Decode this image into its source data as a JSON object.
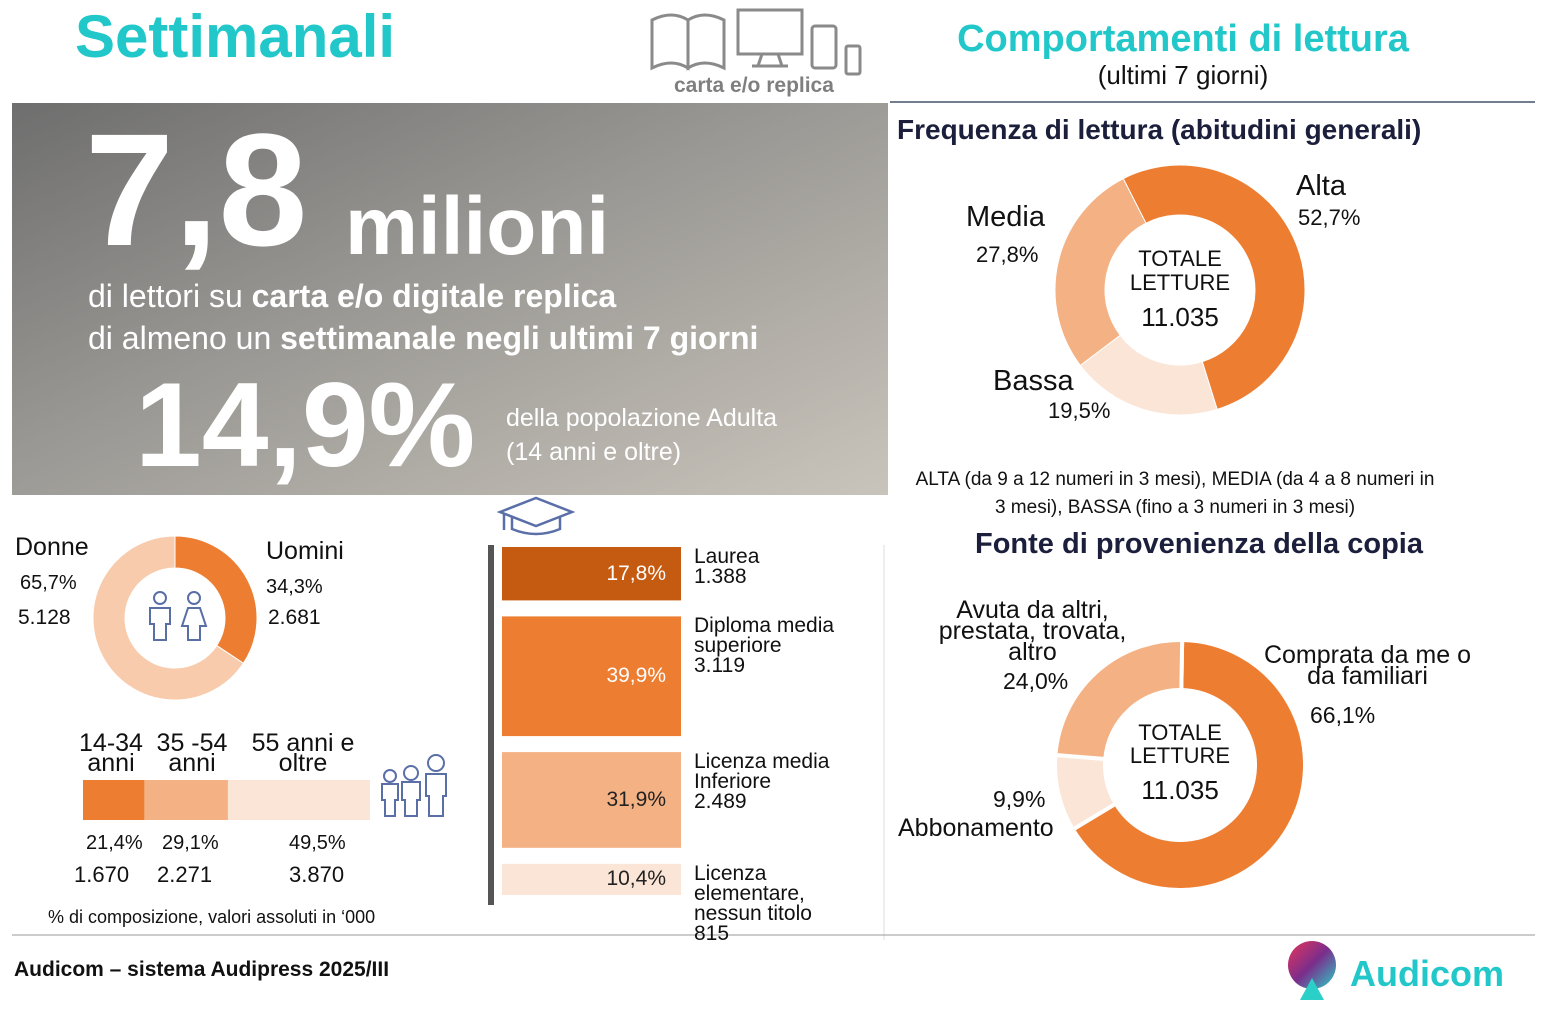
{
  "header": {
    "title": "Settimanali",
    "icon_caption": "carta e/o replica",
    "section_title": "Comportamenti di lettura",
    "section_subtitle": "(ultimi 7 giorni)"
  },
  "hero": {
    "big_number": "7,8",
    "big_unit": "milioni",
    "line1_prefix": "di lettori su",
    "line1_bold": "carta e/o digitale replica",
    "line2_prefix": "di almeno un",
    "line2_bold": "settimanale negli ultimi 7 giorni",
    "pct": "14,9%",
    "pct_desc1": "della popolazione Adulta",
    "pct_desc2": "(14 anni e oltre)"
  },
  "chart_data": [
    {
      "type": "donut",
      "title": "Frequenza di lettura  (abitudini generali)",
      "categories": [
        "Alta",
        "Bassa",
        "Media"
      ],
      "values": [
        52.7,
        19.5,
        27.8
      ],
      "value_labels": [
        "52,7%",
        "19,5%",
        "27,8%"
      ],
      "colors": [
        "#ed7d31",
        "#fbe5d6",
        "#f4b183"
      ],
      "center_text": [
        "TOTALE",
        "LETTURE"
      ],
      "total_label": "11.035",
      "note": "ALTA (da 9 a 12 numeri in 3 mesi), MEDIA (da 4 a 8 numeri in 3 mesi), BASSA (fino a 3 numeri in 3 mesi)"
    },
    {
      "type": "donut",
      "categories": [
        "Uomini",
        "Donne"
      ],
      "values": [
        34.3,
        65.7
      ],
      "value_labels": [
        "34,3%",
        "65,7%"
      ],
      "absolute": [
        "2.681",
        "5.128"
      ],
      "colors": [
        "#ed7d31",
        "#f8cbad"
      ]
    },
    {
      "type": "stacked-bar",
      "categories": [
        "14-34 anni",
        "35 -54 anni",
        "55 anni e oltre"
      ],
      "values": [
        21.4,
        29.1,
        49.5
      ],
      "value_labels": [
        "21,4%",
        "29,1%",
        "49,5%"
      ],
      "absolute": [
        "1.670",
        "2.271",
        "3.870"
      ],
      "colors": [
        "#ed7d31",
        "#f4b183",
        "#fbe5d6"
      ],
      "note": "% di composizione, valori assoluti in ‘000"
    },
    {
      "type": "bar",
      "categories": [
        "Laurea",
        "Diploma media superiore",
        "Licenza media Inferiore",
        "Licenza elementare, nessun titolo"
      ],
      "values": [
        17.8,
        39.9,
        31.9,
        10.4
      ],
      "value_labels": [
        "17,8%",
        "39,9%",
        "31,9%",
        "10,4%"
      ],
      "absolute": [
        "1.388",
        "3.119",
        "2.489",
        "815"
      ],
      "colors": [
        "#c55a11",
        "#ed7d31",
        "#f4b183",
        "#fbe5d6"
      ]
    },
    {
      "type": "donut",
      "title": "Fonte di provenienza della copia",
      "categories": [
        "Comprata da me o da familiari",
        "Abbonamento",
        "Avuta da altri, prestata, trovata, altro"
      ],
      "values": [
        66.1,
        9.9,
        24.0
      ],
      "value_labels": [
        "66,1%",
        "9,9%",
        "24,0%"
      ],
      "colors": [
        "#ed7d31",
        "#fbe5d6",
        "#f4b183"
      ],
      "center_text": [
        "TOTALE",
        "LETTURE"
      ],
      "total_label": "11.035"
    }
  ],
  "footer": {
    "source": "Audicom – sistema Audipress 2025/III",
    "logo": "Audicom"
  }
}
